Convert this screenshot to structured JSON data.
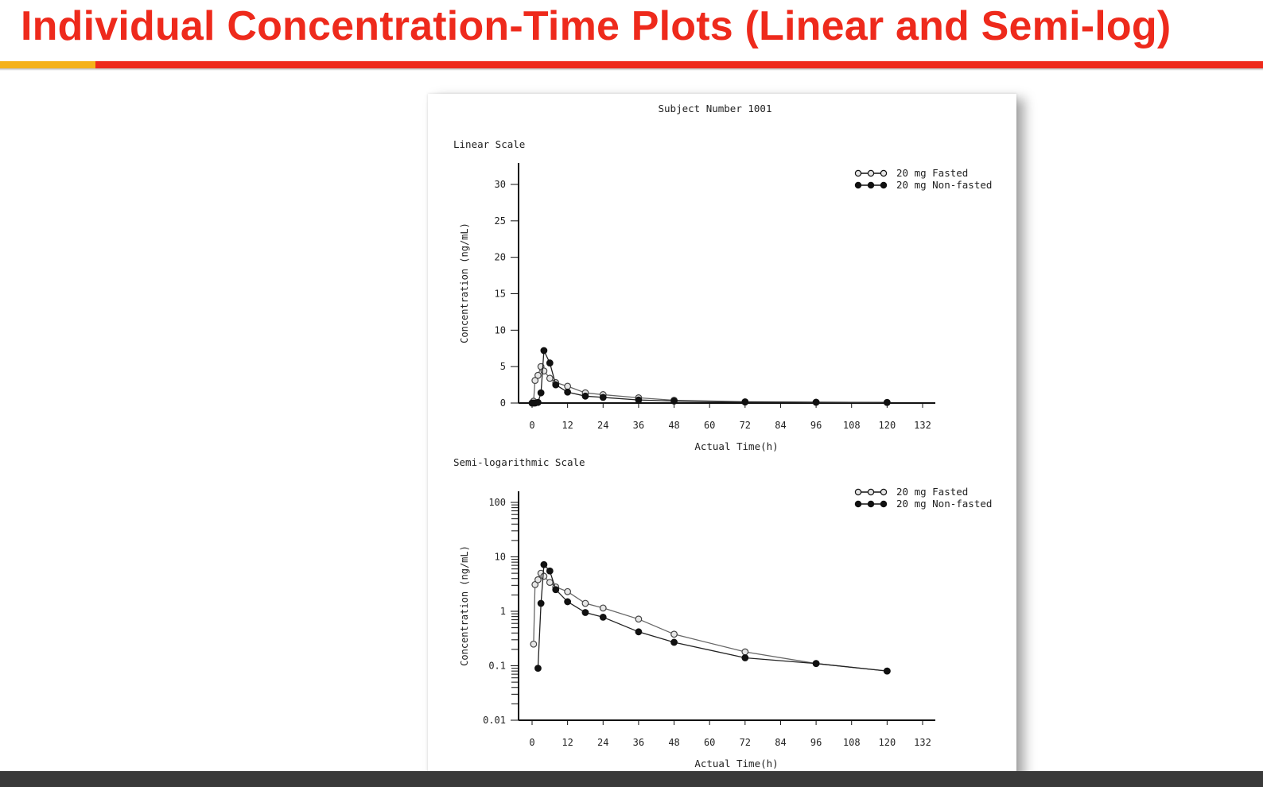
{
  "slide": {
    "title": "Individual Concentration-Time Plots (Linear and Semi-log)",
    "accent_red": "#ee2a1c",
    "accent_gold": "#f5b21a"
  },
  "figure": {
    "subject_label": "Subject Number 1001",
    "linear_panel_label": "Linear Scale",
    "semilog_panel_label": "Semi-logarithmic Scale"
  },
  "chart_data": [
    {
      "type": "line",
      "panel": "Linear Scale",
      "xlabel": "Actual Time(h)",
      "ylabel": "Concentration (ng/mL)",
      "xlim": [
        0,
        132
      ],
      "ylim": [
        0,
        30
      ],
      "x_ticks": [
        "0",
        "12",
        "24",
        "36",
        "48",
        "60",
        "72",
        "84",
        "96",
        "108",
        "120",
        "132"
      ],
      "y_ticks": [
        "0",
        "5",
        "10",
        "15",
        "20",
        "25",
        "30"
      ],
      "y_scale": "linear",
      "legend_position": "top-right",
      "series": [
        {
          "name": "20 mg Fasted",
          "marker": "open-circle",
          "x": [
            0,
            0.5,
            1,
            2,
            3,
            4,
            6,
            8,
            12,
            18,
            24,
            36,
            48,
            72,
            96,
            120
          ],
          "y": [
            0,
            0.25,
            3.1,
            3.8,
            5.0,
            4.4,
            3.4,
            2.8,
            2.3,
            1.4,
            1.15,
            0.72,
            0.38,
            0.18,
            0.11,
            0.08
          ]
        },
        {
          "name": "20 mg Non-fasted",
          "marker": "filled-circle",
          "x": [
            0,
            0.5,
            1,
            2,
            3,
            4,
            6,
            8,
            12,
            18,
            24,
            36,
            48,
            72,
            96,
            120
          ],
          "y": [
            0,
            0,
            0,
            0.09,
            1.4,
            7.2,
            5.5,
            2.5,
            1.5,
            0.95,
            0.78,
            0.42,
            0.27,
            0.14,
            0.11,
            0.08
          ]
        }
      ]
    },
    {
      "type": "line",
      "panel": "Semi-logarithmic Scale",
      "xlabel": "Actual Time(h)",
      "ylabel": "Concentration (ng/mL)",
      "xlim": [
        0,
        132
      ],
      "ylim": [
        0.01,
        100
      ],
      "x_ticks": [
        "0",
        "12",
        "24",
        "36",
        "48",
        "60",
        "72",
        "84",
        "96",
        "108",
        "120",
        "132"
      ],
      "y_ticks": [
        "0.01",
        "0.1",
        "1",
        "10",
        "100"
      ],
      "y_scale": "log",
      "legend_position": "top-right",
      "series": [
        {
          "name": "20 mg Fasted",
          "marker": "open-circle",
          "x": [
            0.5,
            1,
            2,
            3,
            4,
            6,
            8,
            12,
            18,
            24,
            36,
            48,
            72,
            96,
            120
          ],
          "y": [
            0.25,
            3.1,
            3.8,
            5.0,
            4.4,
            3.4,
            2.8,
            2.3,
            1.4,
            1.15,
            0.72,
            0.38,
            0.18,
            0.11,
            0.08
          ]
        },
        {
          "name": "20 mg Non-fasted",
          "marker": "filled-circle",
          "x": [
            2,
            3,
            4,
            6,
            8,
            12,
            18,
            24,
            36,
            48,
            72,
            96,
            120
          ],
          "y": [
            0.09,
            1.4,
            7.2,
            5.5,
            2.5,
            1.5,
            0.95,
            0.78,
            0.42,
            0.27,
            0.14,
            0.11,
            0.08
          ]
        }
      ]
    }
  ]
}
